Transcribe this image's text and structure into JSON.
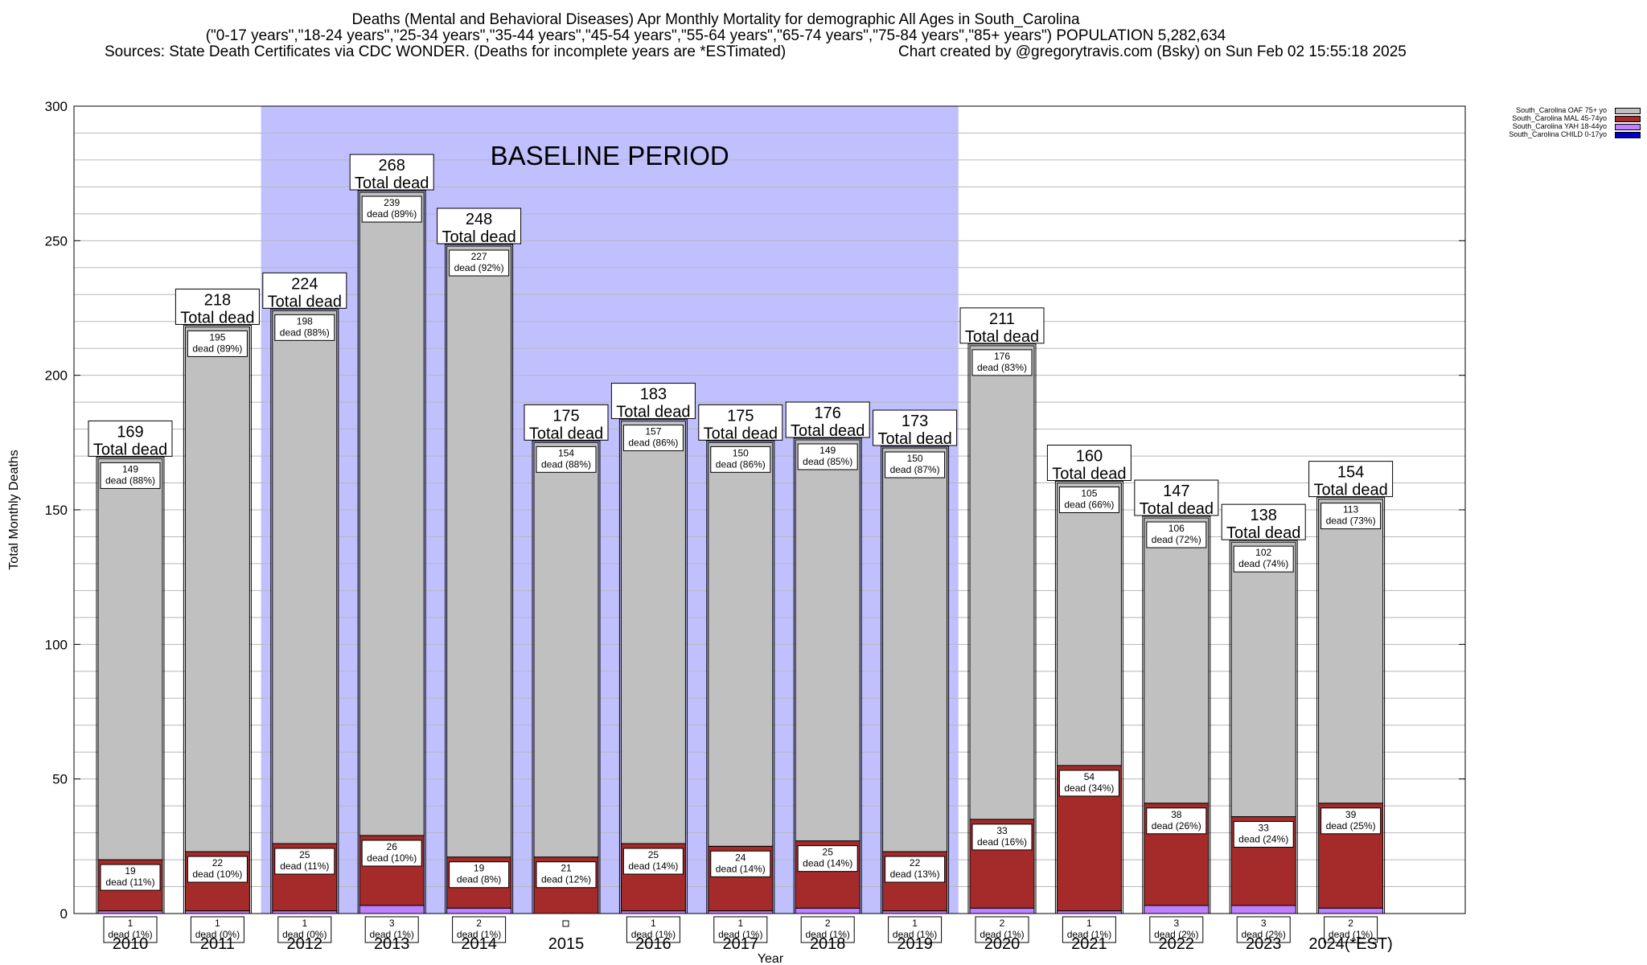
{
  "title": {
    "line1": "Deaths (Mental and Behavioral Diseases) Apr Monthly Mortality for demographic All Ages in South_Carolina",
    "line2": "(\"0-17 years\",\"18-24 years\",\"25-34 years\",\"35-44 years\",\"45-54 years\",\"55-64 years\",\"65-74 years\",\"75-84 years\",\"85+ years\") POPULATION 5,282,634",
    "sources": "Sources: State Death Certificates via CDC WONDER. (Deaths for incomplete years are *ESTimated)",
    "credit": "Chart created by @gregorytravis.com (Bsky) on Sun Feb 02 15:55:18 2025"
  },
  "legend": [
    {
      "label": "South_Carolina OAF 75+ yo",
      "color": "#c0c0c0"
    },
    {
      "label": "South_Carolina MAL 45-74yo",
      "color": "#a52a2a"
    },
    {
      "label": "South_Carolina YAH 18-44yo",
      "color": "#c080ff"
    },
    {
      "label": "South_Carolina CHILD 0-17yo",
      "color": "#0000cc"
    }
  ],
  "chart_data": {
    "type": "bar",
    "stacked": true,
    "ylabel": "Total Monthly Deaths",
    "xlabel": "Year",
    "ylim": [
      0,
      300
    ],
    "yticks": [
      0,
      50,
      100,
      150,
      200,
      250,
      300
    ],
    "baseline": {
      "label": "BASELINE PERIOD",
      "from": "2012",
      "to": "2019"
    },
    "total_label": "Total dead",
    "dead_word": "dead",
    "categories": [
      "2010",
      "2011",
      "2012",
      "2013",
      "2014",
      "2015",
      "2016",
      "2017",
      "2018",
      "2019",
      "2020",
      "2021",
      "2022",
      "2023",
      "2024(*EST)"
    ],
    "totals": [
      169,
      218,
      224,
      268,
      248,
      175,
      183,
      175,
      176,
      173,
      211,
      160,
      147,
      138,
      154
    ],
    "series": [
      {
        "name": "South_Carolina CHILD 0-17yo",
        "color": "#0000cc",
        "values": [
          0,
          0,
          0,
          0,
          0,
          0,
          0,
          0,
          0,
          0,
          0,
          0,
          0,
          0,
          0
        ]
      },
      {
        "name": "South_Carolina YAH 18-44yo",
        "color": "#c080ff",
        "values": [
          1,
          1,
          1,
          3,
          2,
          0,
          1,
          1,
          2,
          1,
          2,
          1,
          3,
          3,
          2
        ],
        "pct": [
          "1%",
          "0%",
          "0%",
          "1%",
          "1%",
          "",
          "1%",
          "1%",
          "1%",
          "1%",
          "1%",
          "1%",
          "2%",
          "2%",
          "1%"
        ]
      },
      {
        "name": "South_Carolina MAL 45-74yo",
        "color": "#a52a2a",
        "values": [
          19,
          22,
          25,
          26,
          19,
          21,
          25,
          24,
          25,
          22,
          33,
          54,
          38,
          33,
          39
        ],
        "pct": [
          "11%",
          "10%",
          "11%",
          "10%",
          "8%",
          "12%",
          "14%",
          "14%",
          "14%",
          "13%",
          "16%",
          "34%",
          "26%",
          "24%",
          "25%"
        ]
      },
      {
        "name": "South_Carolina OAF 75+ yo",
        "color": "#c0c0c0",
        "values": [
          149,
          195,
          198,
          239,
          227,
          154,
          157,
          150,
          149,
          150,
          176,
          105,
          106,
          102,
          113
        ],
        "pct": [
          "88%",
          "89%",
          "88%",
          "89%",
          "92%",
          "88%",
          "86%",
          "86%",
          "85%",
          "87%",
          "83%",
          "66%",
          "72%",
          "74%",
          "73%"
        ]
      }
    ]
  }
}
